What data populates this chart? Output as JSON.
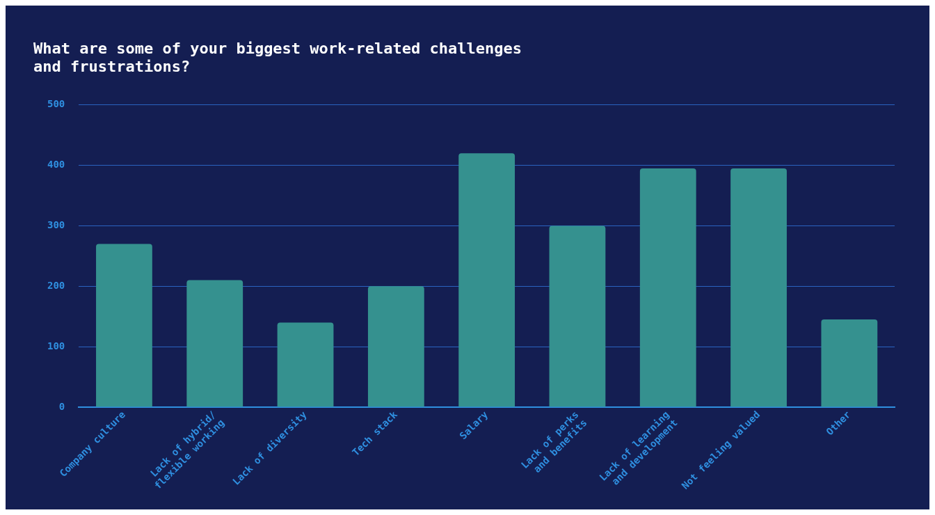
{
  "chart_data": {
    "type": "bar",
    "title": "What are some of your biggest work-related challenges\nand frustrations?",
    "categories": [
      "Company culture",
      "Lack of hybrid/\nflexible working",
      "Lack of diversity",
      "Tech stack",
      "Salary",
      "Lack of perks\nand benefits",
      "Lack of learning\nand development",
      "Not feeling valued",
      "Other"
    ],
    "values": [
      270,
      210,
      140,
      200,
      420,
      300,
      395,
      395,
      145
    ],
    "color": "#35918f",
    "ylim": [
      0,
      500
    ],
    "yticks": [
      0,
      100,
      200,
      300,
      400,
      500
    ],
    "grid": "y",
    "legend": false
  }
}
